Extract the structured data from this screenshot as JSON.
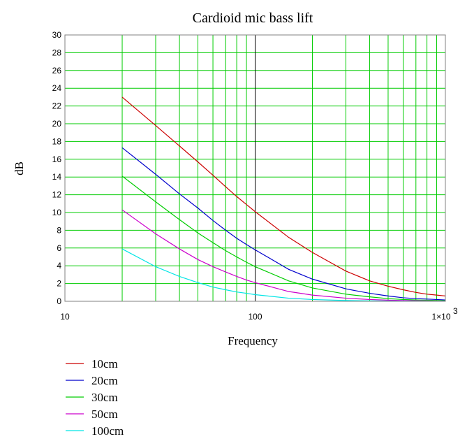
{
  "chart_data": {
    "type": "line",
    "title": "Cardioid mic bass lift",
    "xlabel": "Frequency",
    "ylabel": "dB",
    "xscale": "log",
    "xlim": [
      10,
      1000
    ],
    "ylim": [
      0,
      30
    ],
    "x_ticks": [
      {
        "value": 10,
        "label": "10"
      },
      {
        "value": 100,
        "label": "100"
      },
      {
        "value": 1000,
        "label": "1×10",
        "exp": "3"
      }
    ],
    "y_ticks": [
      0,
      2,
      4,
      6,
      8,
      10,
      12,
      14,
      16,
      18,
      20,
      22,
      24,
      26,
      28,
      30
    ],
    "grid": true,
    "grid_color": "#00cc00",
    "legend_position": "bottom-left",
    "x": [
      20,
      30,
      40,
      50,
      60,
      70,
      80,
      90,
      100,
      150,
      200,
      300,
      400,
      500,
      600,
      700,
      800,
      900,
      1000
    ],
    "series": [
      {
        "name": "10cm",
        "color": "#cc0000",
        "values": [
          23.0,
          19.8,
          17.5,
          15.7,
          14.2,
          12.9,
          11.8,
          10.9,
          10.1,
          7.2,
          5.5,
          3.4,
          2.3,
          1.7,
          1.3,
          1.0,
          0.8,
          0.7,
          0.6
        ]
      },
      {
        "name": "20cm",
        "color": "#0000cc",
        "values": [
          17.3,
          14.3,
          12.1,
          10.5,
          9.1,
          8.0,
          7.1,
          6.4,
          5.8,
          3.6,
          2.5,
          1.4,
          0.9,
          0.6,
          0.4,
          0.3,
          0.25,
          0.2,
          0.15
        ]
      },
      {
        "name": "30cm",
        "color": "#00cc00",
        "values": [
          14.1,
          11.2,
          9.2,
          7.7,
          6.6,
          5.7,
          5.0,
          4.4,
          3.9,
          2.3,
          1.5,
          0.8,
          0.5,
          0.3,
          0.2,
          0.15,
          0.12,
          0.1,
          0.08
        ]
      },
      {
        "name": "50cm",
        "color": "#cc00cc",
        "values": [
          10.3,
          7.6,
          5.9,
          4.7,
          3.9,
          3.3,
          2.8,
          2.4,
          2.1,
          1.1,
          0.7,
          0.35,
          0.2,
          0.13,
          0.09,
          0.07,
          0.05,
          0.04,
          0.03
        ]
      },
      {
        "name": "100cm",
        "color": "#00e5e5",
        "values": [
          5.9,
          3.9,
          2.8,
          2.1,
          1.6,
          1.3,
          1.05,
          0.9,
          0.75,
          0.35,
          0.2,
          0.09,
          0.05,
          0.03,
          0.02,
          0.015,
          0.01,
          0.01,
          0.01
        ]
      }
    ]
  }
}
